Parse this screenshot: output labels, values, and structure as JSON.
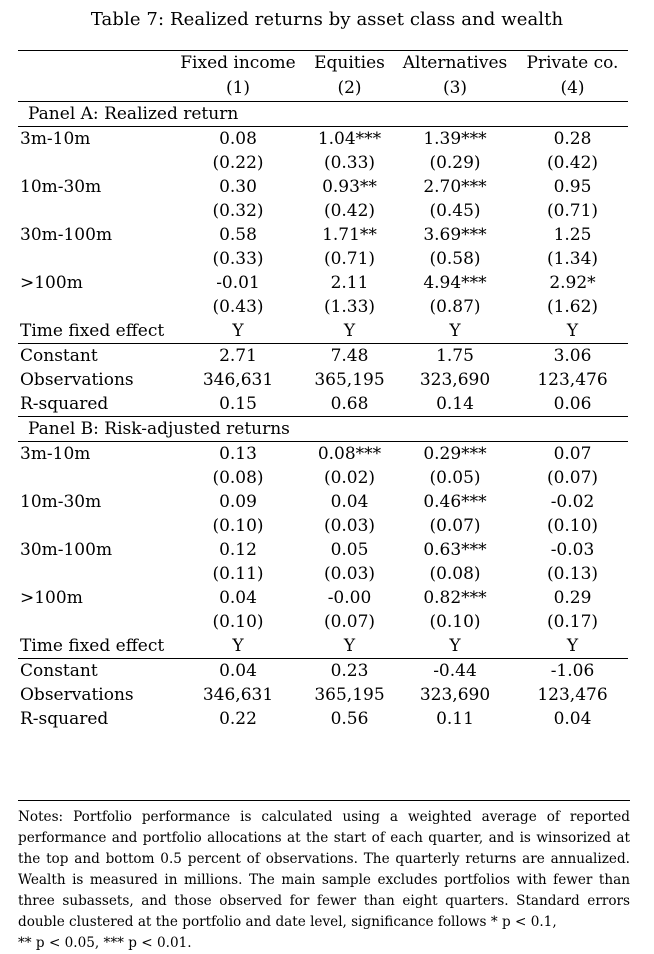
{
  "caption": "Table 7: Realized returns by asset class and wealth",
  "columns": [
    {
      "name": "Fixed income",
      "num": "(1)"
    },
    {
      "name": "Equities",
      "num": "(2)"
    },
    {
      "name": "Alternatives",
      "num": "(3)"
    },
    {
      "name": "Private co.",
      "num": "(4)"
    }
  ],
  "panelA": {
    "title": "Panel A: Realized return",
    "rows": [
      {
        "label": "3m-10m",
        "coef": [
          "0.08",
          "1.04***",
          "1.39***",
          "0.28"
        ],
        "se": [
          "(0.22)",
          "(0.33)",
          "(0.29)",
          "(0.42)"
        ]
      },
      {
        "label": "10m-30m",
        "coef": [
          "0.30",
          "0.93**",
          "2.70***",
          "0.95"
        ],
        "se": [
          "(0.32)",
          "(0.42)",
          "(0.45)",
          "(0.71)"
        ]
      },
      {
        "label": "30m-100m",
        "coef": [
          "0.58",
          "1.71**",
          "3.69***",
          "1.25"
        ],
        "se": [
          "(0.33)",
          "(0.71)",
          "(0.58)",
          "(1.34)"
        ]
      },
      {
        "label": ">100m",
        "coef": [
          "-0.01",
          "2.11",
          "4.94***",
          "2.92*"
        ],
        "se": [
          "(0.43)",
          "(1.33)",
          "(0.87)",
          "(1.62)"
        ]
      }
    ],
    "fixed_effect": {
      "label": "Time fixed effect",
      "values": [
        "Y",
        "Y",
        "Y",
        "Y"
      ]
    },
    "stats": [
      {
        "label": "Constant",
        "values": [
          "2.71",
          "7.48",
          "1.75",
          "3.06"
        ]
      },
      {
        "label": "Observations",
        "values": [
          "346,631",
          "365,195",
          "323,690",
          "123,476"
        ]
      },
      {
        "label": "R-squared",
        "values": [
          "0.15",
          "0.68",
          "0.14",
          "0.06"
        ]
      }
    ]
  },
  "panelB": {
    "title": "Panel B: Risk-adjusted returns",
    "rows": [
      {
        "label": "3m-10m",
        "coef": [
          "0.13",
          "0.08***",
          "0.29***",
          "0.07"
        ],
        "se": [
          "(0.08)",
          "(0.02)",
          "(0.05)",
          "(0.07)"
        ]
      },
      {
        "label": "10m-30m",
        "coef": [
          "0.09",
          "0.04",
          "0.46***",
          "-0.02"
        ],
        "se": [
          "(0.10)",
          "(0.03)",
          "(0.07)",
          "(0.10)"
        ]
      },
      {
        "label": "30m-100m",
        "coef": [
          "0.12",
          "0.05",
          "0.63***",
          "-0.03"
        ],
        "se": [
          "(0.11)",
          "(0.03)",
          "(0.08)",
          "(0.13)"
        ]
      },
      {
        "label": ">100m",
        "coef": [
          "0.04",
          "-0.00",
          "0.82***",
          "0.29"
        ],
        "se": [
          "(0.10)",
          "(0.07)",
          "(0.10)",
          "(0.17)"
        ]
      }
    ],
    "fixed_effect": {
      "label": "Time fixed effect",
      "values": [
        "Y",
        "Y",
        "Y",
        "Y"
      ]
    },
    "stats": [
      {
        "label": "Constant",
        "values": [
          "0.04",
          "0.23",
          "-0.44",
          "-1.06"
        ]
      },
      {
        "label": "Observations",
        "values": [
          "346,631",
          "365,195",
          "323,690",
          "123,476"
        ]
      },
      {
        "label": "R-squared",
        "values": [
          "0.22",
          "0.56",
          "0.11",
          "0.04"
        ]
      }
    ]
  },
  "notes": {
    "body": "Notes: Portfolio performance is calculated using a weighted average of reported performance and portfolio allocations at the start of each quarter, and is winsorized at the top and bottom 0.5 percent of observations. The quarterly returns are annualized. Wealth is measured in millions. The main sample excludes portfolios with fewer than three subassets, and those observed for fewer than eight quarters. Standard errors double clustered at the portfolio and date level, significance follows * p < 0.1,",
    "last": "** p < 0.05, *** p < 0.01."
  }
}
